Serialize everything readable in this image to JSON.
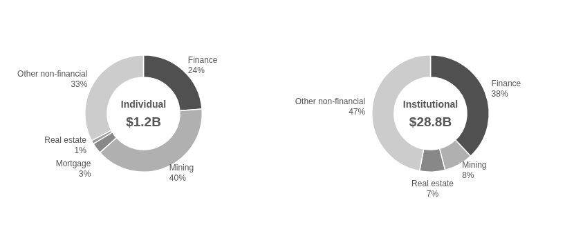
{
  "chart_data": [
    {
      "type": "doughnut",
      "categories": [
        "Finance",
        "Mining",
        "Mortgage",
        "Real estate",
        "Other non-financial"
      ],
      "values": [
        24,
        40,
        3,
        1,
        33
      ],
      "value_labels": [
        "24%",
        "40%",
        "3%",
        "1%",
        "33%"
      ],
      "colors": [
        "#505050",
        "#b0b0b0",
        "#888888",
        "#999999",
        "#cccccc"
      ],
      "data_labels": true,
      "annotations": [
        "Individual",
        "$1.2B"
      ]
    },
    {
      "type": "doughnut",
      "categories": [
        "Finance",
        "Mining",
        "Real estate",
        "Other non-financial"
      ],
      "values": [
        38,
        8,
        7,
        47
      ],
      "value_labels": [
        "38%",
        "8%",
        "7%",
        "47%"
      ],
      "colors": [
        "#505050",
        "#b0b0b0",
        "#888888",
        "#cccccc"
      ],
      "data_labels": true,
      "annotations": [
        "Institutional",
        "$28.8B"
      ]
    }
  ]
}
